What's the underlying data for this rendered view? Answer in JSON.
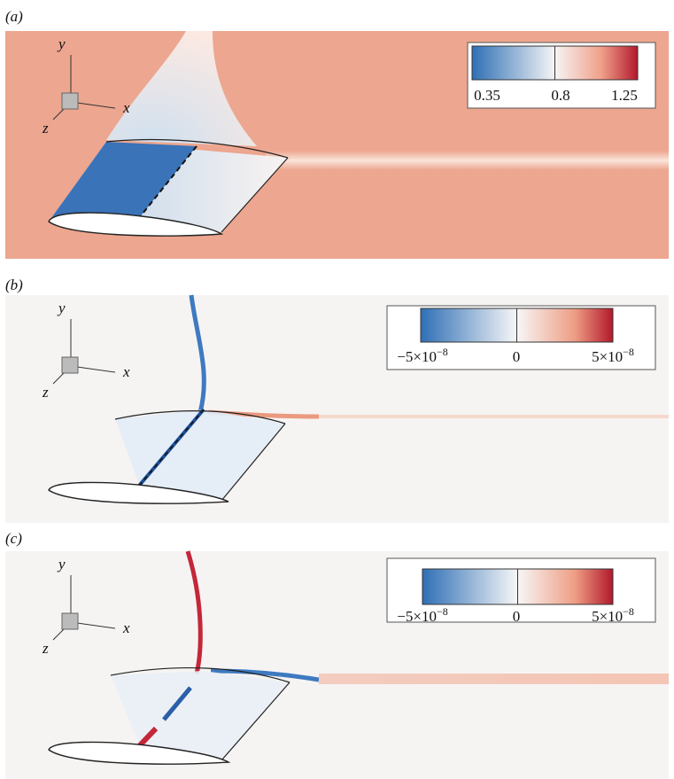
{
  "panels": [
    {
      "label": "(a)",
      "axes": {
        "x": "x",
        "y": "y",
        "z": "z"
      },
      "colorbar": {
        "ticks": [
          {
            "base": "0.35"
          },
          {
            "base": "0.8"
          },
          {
            "base": "1.25"
          }
        ]
      }
    },
    {
      "label": "(b)",
      "axes": {
        "x": "x",
        "y": "y",
        "z": "z"
      },
      "colorbar": {
        "ticks": [
          {
            "base": "−5×10",
            "sup": "−8"
          },
          {
            "base": "0"
          },
          {
            "base": "5×10",
            "sup": "−8"
          }
        ]
      }
    },
    {
      "label": "(c)",
      "axes": {
        "x": "x",
        "y": "y",
        "z": "z"
      },
      "colorbar": {
        "ticks": [
          {
            "base": "−5×10",
            "sup": "−8"
          },
          {
            "base": "0"
          },
          {
            "base": "5×10",
            "sup": "−8"
          }
        ]
      }
    }
  ]
}
